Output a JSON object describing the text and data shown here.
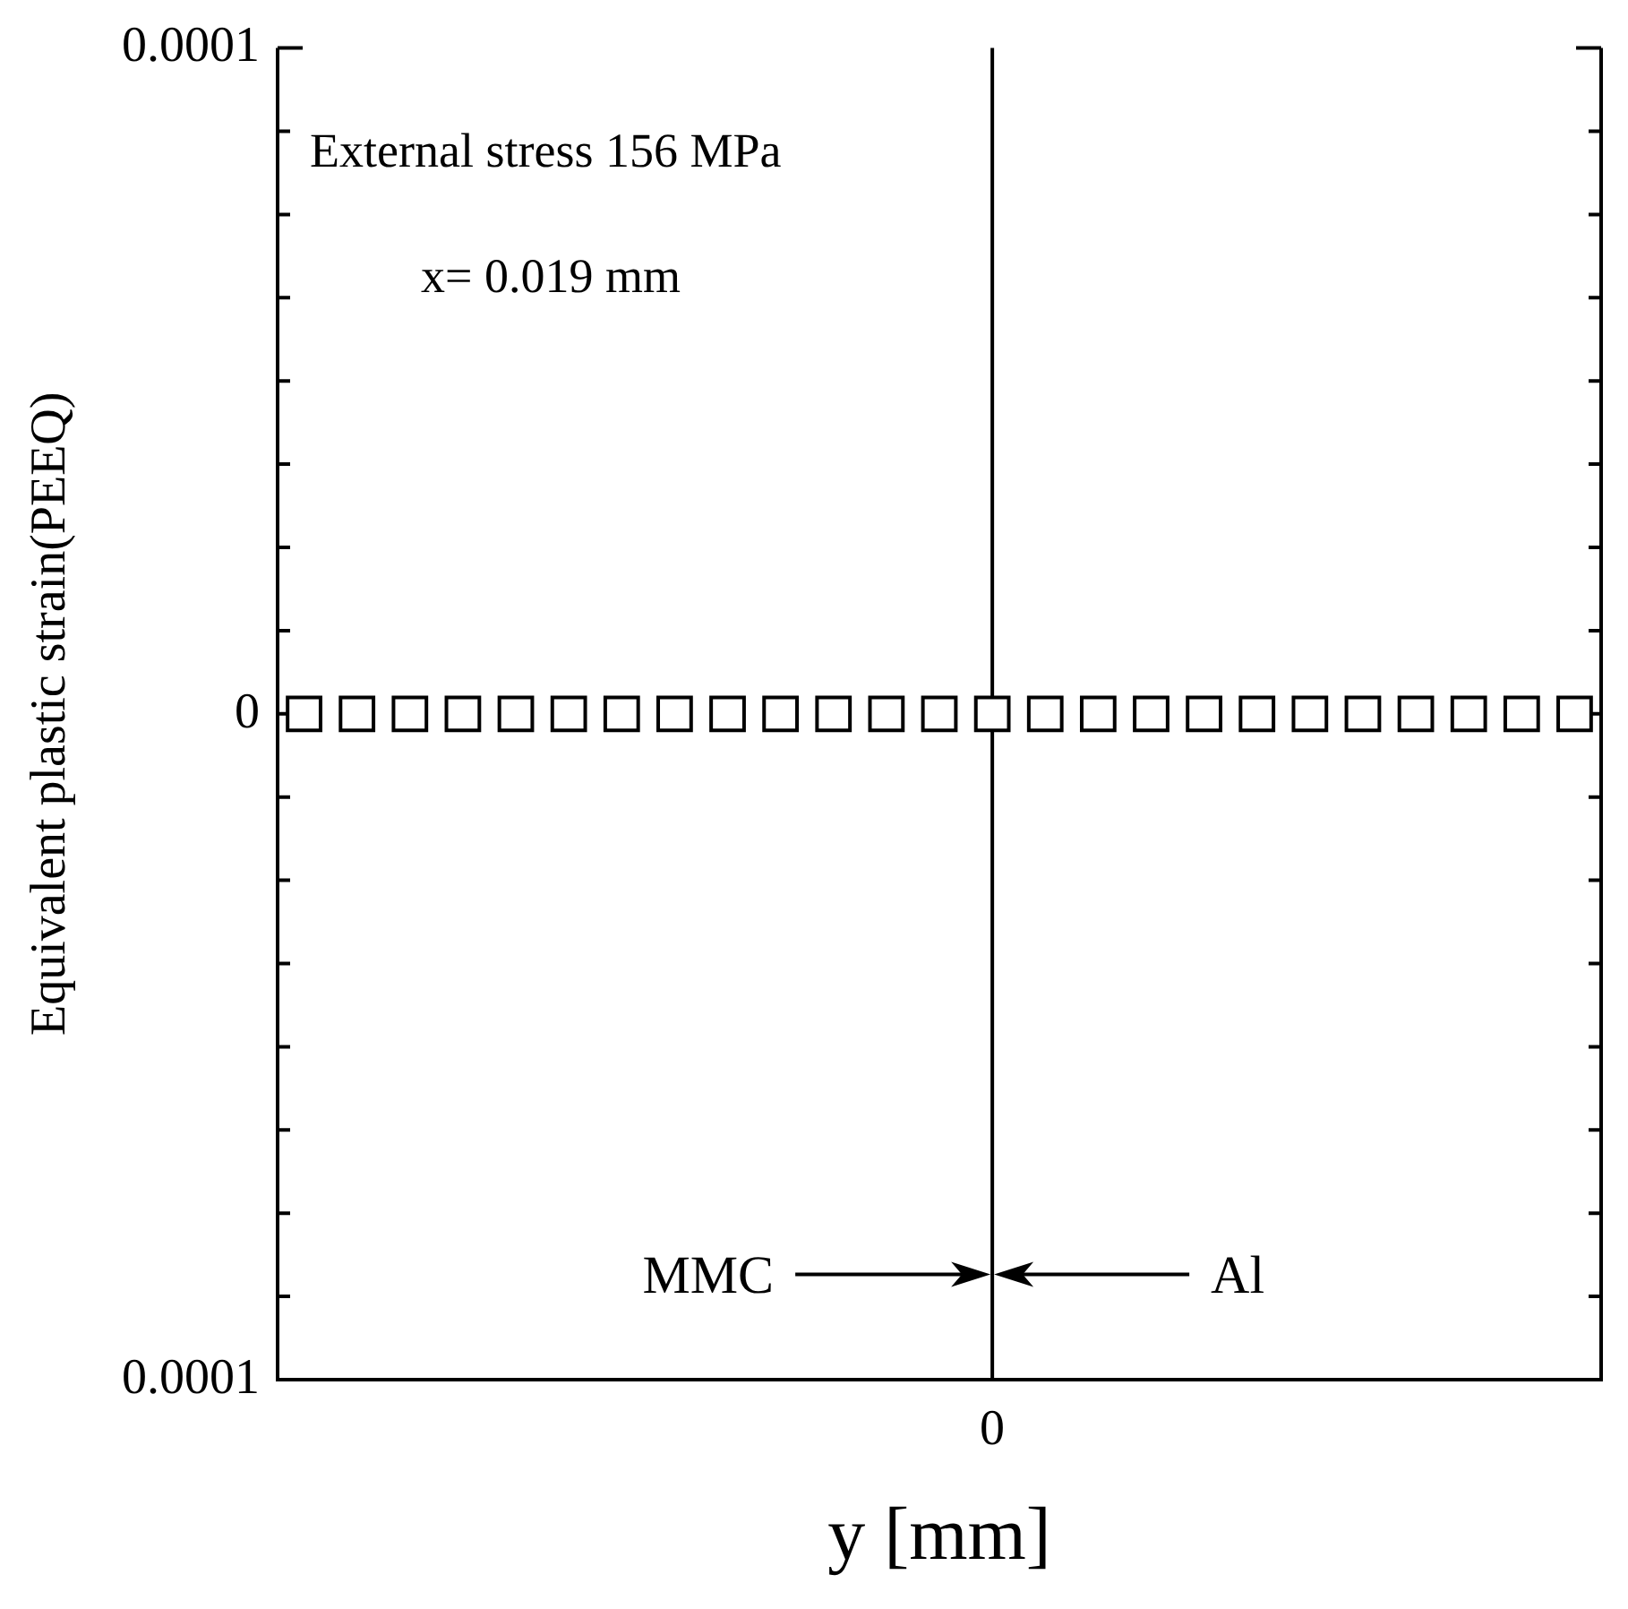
{
  "chart_data": {
    "type": "scatter",
    "ylabel": "Equivalent plastic strain(PEEQ)",
    "xlabel": "y [mm]",
    "annotations": [
      "External stress 156 MPa",
      "x= 0.019 mm",
      "MMC",
      "Al"
    ],
    "categories": [
      null,
      null,
      null,
      null,
      null,
      null,
      null,
      null,
      null,
      null,
      null,
      null,
      null,
      "0",
      null,
      null,
      null,
      null,
      null,
      null,
      null,
      null,
      null,
      null,
      null
    ],
    "series": [
      {
        "color": "#000000",
        "values": [
          0,
          0,
          0,
          0,
          0,
          0,
          0,
          0,
          0,
          0,
          0,
          0,
          0,
          0,
          0,
          0,
          0,
          0,
          0,
          0,
          0,
          0,
          0,
          0,
          0
        ]
      }
    ],
    "marker": "square",
    "grid": false,
    "legend": false,
    "ylim": [
      -0.0001,
      0.0001
    ],
    "yticks": [
      {
        "value": -0.0001,
        "label": "0.0001"
      },
      {
        "value": -8.75e-05,
        "label": null
      },
      {
        "value": -7.5e-05,
        "label": null
      },
      {
        "value": -6.25e-05,
        "label": null
      },
      {
        "value": -5e-05,
        "label": null
      },
      {
        "value": -3.75e-05,
        "label": null
      },
      {
        "value": -2.5e-05,
        "label": null
      },
      {
        "value": -1.25e-05,
        "label": null
      },
      {
        "value": 0,
        "label": "0"
      },
      {
        "value": 1.25e-05,
        "label": null
      },
      {
        "value": 2.5e-05,
        "label": null
      },
      {
        "value": 3.75e-05,
        "label": null
      },
      {
        "value": 5e-05,
        "label": null
      },
      {
        "value": 6.25e-05,
        "label": null
      },
      {
        "value": 7.5e-05,
        "label": null
      },
      {
        "value": 8.75e-05,
        "label": null
      },
      {
        "value": 0.0001,
        "label": "0.0001"
      }
    ],
    "ref_lines": [
      {
        "axis": "x",
        "value": "0",
        "label": null,
        "color": "#000000"
      }
    ]
  }
}
